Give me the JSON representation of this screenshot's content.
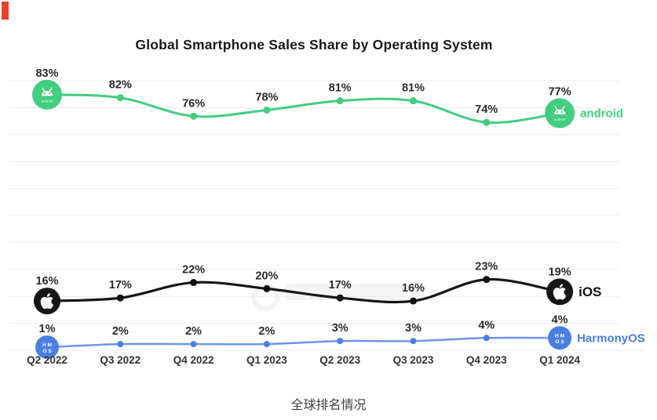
{
  "page": {
    "caption": "全球排名情况",
    "corner_mark_color": "#e8402a",
    "background": "#ffffff",
    "watermark": {
      "style": "faint-logo",
      "legible": false,
      "text": ""
    }
  },
  "chart_data": {
    "type": "line",
    "title": "Global Smartphone Sales Share by Operating System",
    "categories": [
      "Q2 2022",
      "Q3 2022",
      "Q4 2022",
      "Q1 2023",
      "Q2 2023",
      "Q3 2023",
      "Q4 2023",
      "Q1 2024"
    ],
    "series": [
      {
        "name": "android",
        "icon": "android-icon",
        "icon_inner_text": "android",
        "color": "#42cd80",
        "dot_color": "#42cd80",
        "label_color": "#3fcf7f",
        "values": [
          83,
          82,
          76,
          78,
          81,
          81,
          74,
          77
        ]
      },
      {
        "name": "iOS",
        "icon": "apple-icon",
        "icon_inner_text": "",
        "color": "#161616",
        "dot_color": "#111111",
        "label_color": "#111111",
        "values": [
          16,
          17,
          22,
          20,
          17,
          16,
          23,
          19
        ]
      },
      {
        "name": "HarmonyOS",
        "icon": "harmonyos-icon",
        "icon_inner_text_rows": [
          "H M",
          "O S"
        ],
        "color": "#6d95e8",
        "dot_color": "#4a7ee0",
        "label_color": "#4a7de0",
        "values": [
          1,
          2,
          2,
          2,
          3,
          3,
          4,
          4
        ]
      }
    ],
    "value_suffix": "%",
    "ylim": [
      0,
      100
    ],
    "grid": "horizontal",
    "grid_color": "#ececec",
    "value_label_color": "#2b2b2b",
    "x_label_color": "#333333",
    "legend_position": "line-ends"
  }
}
